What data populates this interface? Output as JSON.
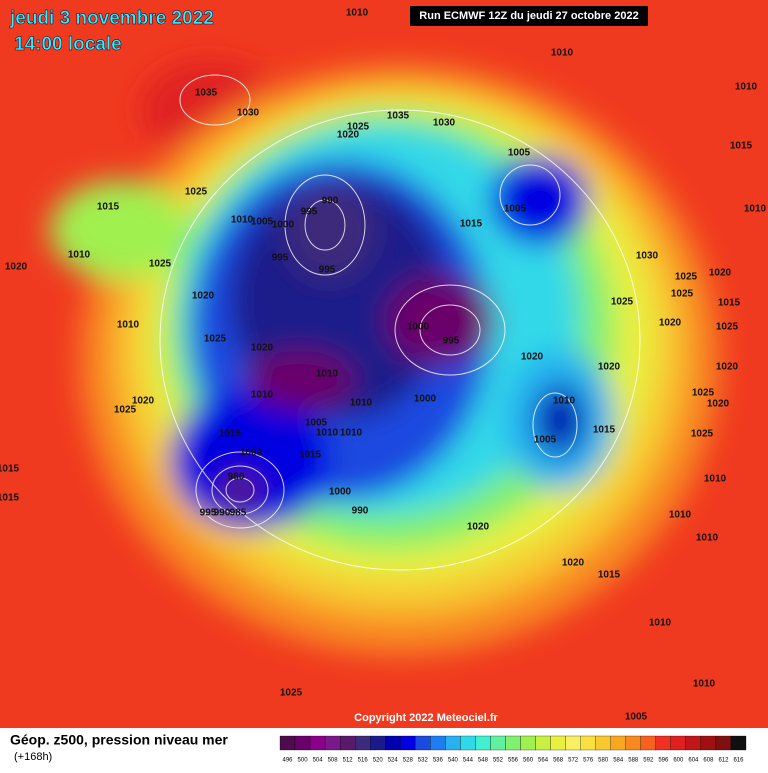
{
  "header": {
    "date": "jeudi 3 novembre 2022",
    "time": "14:00 locale",
    "run": "Run ECMWF 12Z du jeudi 27 octobre 2022"
  },
  "copyright": "Copyright 2022 Meteociel.fr",
  "legend": {
    "title": "Géop. z500, pression niveau mer",
    "subtitle": "(+168h)",
    "levels": [
      496,
      500,
      504,
      508,
      512,
      516,
      520,
      524,
      528,
      532,
      536,
      540,
      544,
      548,
      552,
      556,
      560,
      564,
      568,
      572,
      576,
      580,
      584,
      588,
      592,
      596,
      600,
      604,
      608,
      612,
      616
    ],
    "colors": [
      "#4d0c4d",
      "#6a006a",
      "#8b008b",
      "#7a1a8a",
      "#5a1a6a",
      "#3c2a7a",
      "#1a1a8a",
      "#0000b0",
      "#0000e0",
      "#1a4ae0",
      "#1e7ef0",
      "#28b0f0",
      "#30d8e8",
      "#40f0d0",
      "#60f0a0",
      "#80f070",
      "#a0f050",
      "#c8f040",
      "#e8f040",
      "#f8f060",
      "#f8e040",
      "#f8c830",
      "#f8a820",
      "#f88820",
      "#f86020",
      "#f03020",
      "#e02020",
      "#c01818",
      "#a01010",
      "#801010",
      "#101010"
    ]
  },
  "isobar_labels": [
    "1010",
    "1010",
    "1035",
    "1030",
    "1010",
    "1035",
    "1030",
    "1025",
    "1020",
    "1005",
    "1015",
    "1025",
    "1015",
    "990",
    "995",
    "1010",
    "1005",
    "1000",
    "1005",
    "1015",
    "1010",
    "1010",
    "995",
    "995",
    "1025",
    "1020",
    "1030",
    "1025",
    "1020",
    "1020",
    "1025",
    "1015",
    "1025",
    "1010",
    "1000",
    "995",
    "1020",
    "1025",
    "1025",
    "1020",
    "1020",
    "1020",
    "1020",
    "1010",
    "1010",
    "1010",
    "1000",
    "1025",
    "1020",
    "1025",
    "1010",
    "1020",
    "1015",
    "1005",
    "1010",
    "1010",
    "1005",
    "1015",
    "1025",
    "1000",
    "1015",
    "1015",
    "980",
    "1010",
    "1000",
    "1015",
    "995",
    "990",
    "985",
    "990",
    "1010",
    "1020",
    "1010",
    "1020",
    "1015",
    "1010",
    "1010",
    "1025",
    "1005"
  ]
}
